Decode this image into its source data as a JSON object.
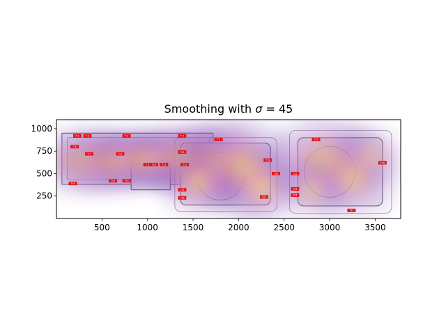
{
  "chart_data": {
    "type": "heatmap",
    "title": "Smoothing with  σ = 45",
    "title_prefix": "Smoothing with  ",
    "title_sigma": "σ",
    "title_suffix": " = 45",
    "xlabel": "",
    "ylabel": "",
    "xlim": [
      0,
      3780
    ],
    "ylim": [
      0,
      1100
    ],
    "y_inverted_image": true,
    "xticks": [
      500,
      1000,
      1500,
      2000,
      2500,
      3000,
      3500
    ],
    "yticks": [
      250,
      500,
      750,
      1000
    ],
    "grid": false,
    "background": "floor plan of a two-building store layout",
    "colormap": [
      "#5b2a9a",
      "#b46bd0",
      "#f59ac6",
      "#fbc06a",
      "#fff27a"
    ],
    "hotspots": [
      {
        "x": 300,
        "y": 640,
        "sx": 260,
        "sy": 170,
        "w": 0.75
      },
      {
        "x": 650,
        "y": 640,
        "sx": 260,
        "sy": 160,
        "w": 0.85
      },
      {
        "x": 1000,
        "y": 660,
        "sx": 260,
        "sy": 150,
        "w": 0.95
      },
      {
        "x": 1400,
        "y": 660,
        "sx": 260,
        "sy": 170,
        "w": 0.95
      },
      {
        "x": 1750,
        "y": 620,
        "sx": 240,
        "sy": 200,
        "w": 0.85
      },
      {
        "x": 2050,
        "y": 560,
        "sx": 260,
        "sy": 240,
        "w": 0.75
      },
      {
        "x": 1550,
        "y": 400,
        "sx": 200,
        "sy": 170,
        "w": 0.55
      },
      {
        "x": 2250,
        "y": 350,
        "sx": 190,
        "sy": 190,
        "w": 0.5
      },
      {
        "x": 2950,
        "y": 650,
        "sx": 280,
        "sy": 220,
        "w": 0.7
      },
      {
        "x": 3250,
        "y": 470,
        "sx": 240,
        "sy": 220,
        "w": 0.55
      },
      {
        "x": 2800,
        "y": 320,
        "sx": 170,
        "sy": 160,
        "w": 0.4
      },
      {
        "x": 3450,
        "y": 700,
        "sx": 170,
        "sy": 160,
        "w": 0.35
      }
    ],
    "markers": [
      {
        "label": "T 1",
        "x": 230,
        "y": 920
      },
      {
        "label": "T 2",
        "x": 340,
        "y": 920
      },
      {
        "label": "T 3",
        "x": 770,
        "y": 920
      },
      {
        "label": "T 4",
        "x": 1380,
        "y": 920
      },
      {
        "label": "T 5",
        "x": 1780,
        "y": 880
      },
      {
        "label": "T 6",
        "x": 200,
        "y": 800
      },
      {
        "label": "T 7",
        "x": 360,
        "y": 720
      },
      {
        "label": "T 8",
        "x": 700,
        "y": 720
      },
      {
        "label": "T 9",
        "x": 1000,
        "y": 600
      },
      {
        "label": "T10",
        "x": 1070,
        "y": 600
      },
      {
        "label": "T11",
        "x": 1180,
        "y": 600
      },
      {
        "label": "T12",
        "x": 1410,
        "y": 600
      },
      {
        "label": "T13",
        "x": 1380,
        "y": 740
      },
      {
        "label": "T14",
        "x": 620,
        "y": 420
      },
      {
        "label": "T15",
        "x": 770,
        "y": 420
      },
      {
        "label": "T16",
        "x": 180,
        "y": 390
      },
      {
        "label": "T17",
        "x": 1380,
        "y": 320
      },
      {
        "label": "T18",
        "x": 1380,
        "y": 230
      },
      {
        "label": "T19",
        "x": 2320,
        "y": 650
      },
      {
        "label": "T20",
        "x": 2410,
        "y": 500
      },
      {
        "label": "T21",
        "x": 2280,
        "y": 240
      },
      {
        "label": "T22",
        "x": 2620,
        "y": 500
      },
      {
        "label": "T23",
        "x": 2620,
        "y": 330
      },
      {
        "label": "T24",
        "x": 2620,
        "y": 260
      },
      {
        "label": "T25",
        "x": 2850,
        "y": 880
      },
      {
        "label": "T26",
        "x": 3580,
        "y": 620
      },
      {
        "label": "T27",
        "x": 3240,
        "y": 90
      }
    ]
  }
}
